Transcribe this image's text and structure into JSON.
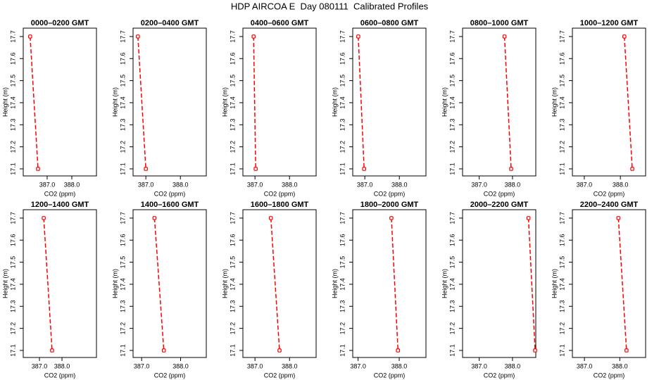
{
  "title": "HDP AIRCOA E  Day 080111  Calibrated Profiles",
  "chart_data": [
    {
      "type": "line",
      "title": "0000–0200 GMT",
      "xlabel": "CO2 (ppm)",
      "ylabel": "Height (m)",
      "x": [
        386.31,
        386.63
      ],
      "series": [
        {
          "color": "#ff0000",
          "values": [
            17.7,
            17.1
          ]
        }
      ],
      "xlim": [
        386.03,
        389.0
      ],
      "xticks": [
        {
          "value": 387,
          "label": "387.0"
        },
        {
          "value": 388,
          "label": "388.0"
        }
      ],
      "ylim": [
        17.068,
        17.738
      ],
      "yticks": [
        17.1,
        17.2,
        17.3,
        17.4,
        17.5,
        17.6,
        17.7
      ]
    },
    {
      "type": "line",
      "title": "0200–0400 GMT",
      "xlabel": "CO2 (ppm)",
      "ylabel": "Height (m)",
      "x": [
        386.77,
        387.0
      ],
      "series": [
        {
          "color": "#ff0000",
          "values": [
            17.7,
            17.1
          ]
        }
      ],
      "xlim": [
        386.63,
        388.75
      ],
      "xticks": [
        {
          "value": 387,
          "label": "387.0"
        },
        {
          "value": 388,
          "label": "388.0"
        }
      ],
      "ylim": [
        17.068,
        17.738
      ],
      "yticks": [
        17.1,
        17.2,
        17.3,
        17.4,
        17.5,
        17.6,
        17.7
      ]
    },
    {
      "type": "line",
      "title": "0400–0600 GMT",
      "xlabel": "CO2 (ppm)",
      "ylabel": "Height (m)",
      "x": [
        386.96,
        387.02
      ],
      "series": [
        {
          "color": "#ff0000",
          "values": [
            17.7,
            17.1
          ]
        }
      ],
      "xlim": [
        386.65,
        388.77
      ],
      "xticks": [
        {
          "value": 387,
          "label": "387.0"
        },
        {
          "value": 388,
          "label": "388.0"
        }
      ],
      "ylim": [
        17.068,
        17.738
      ],
      "yticks": [
        17.1,
        17.2,
        17.3,
        17.4,
        17.5,
        17.6,
        17.7
      ]
    },
    {
      "type": "line",
      "title": "0600–0800 GMT",
      "xlabel": "CO2 (ppm)",
      "ylabel": "Height (m)",
      "x": [
        386.81,
        386.98
      ],
      "series": [
        {
          "color": "#ff0000",
          "values": [
            17.7,
            17.1
          ]
        }
      ],
      "xlim": [
        386.65,
        388.77
      ],
      "xticks": [
        {
          "value": 387,
          "label": "387.0"
        },
        {
          "value": 388,
          "label": "388.0"
        }
      ],
      "ylim": [
        17.068,
        17.738
      ],
      "yticks": [
        17.1,
        17.2,
        17.3,
        17.4,
        17.5,
        17.6,
        17.7
      ]
    },
    {
      "type": "line",
      "title": "0800–1000 GMT",
      "xlabel": "CO2 (ppm)",
      "ylabel": "Height (m)",
      "x": [
        387.76,
        387.96
      ],
      "series": [
        {
          "color": "#ff0000",
          "values": [
            17.7,
            17.1
          ]
        }
      ],
      "xlim": [
        386.5,
        388.7
      ],
      "xticks": [
        {
          "value": 387,
          "label": "387.0"
        },
        {
          "value": 388,
          "label": "388.0"
        }
      ],
      "ylim": [
        17.068,
        17.738
      ],
      "yticks": [
        17.1,
        17.2,
        17.3,
        17.4,
        17.5,
        17.6,
        17.7
      ]
    },
    {
      "type": "line",
      "title": "1000–1200 GMT",
      "xlabel": "CO2 (ppm)",
      "ylabel": "Height (m)",
      "x": [
        388.11,
        388.33
      ],
      "series": [
        {
          "color": "#ff0000",
          "values": [
            17.7,
            17.1
          ]
        }
      ],
      "xlim": [
        386.67,
        388.7
      ],
      "xticks": [
        {
          "value": 387,
          "label": "387.0"
        },
        {
          "value": 388,
          "label": "388.0"
        }
      ],
      "ylim": [
        17.068,
        17.738
      ],
      "yticks": [
        17.1,
        17.2,
        17.3,
        17.4,
        17.5,
        17.6,
        17.7
      ]
    },
    {
      "type": "line",
      "title": "1200–1400 GMT",
      "xlabel": "CO2 (ppm)",
      "ylabel": "Height (m)",
      "x": [
        387.19,
        387.56
      ],
      "series": [
        {
          "color": "#ff0000",
          "values": [
            17.7,
            17.1
          ]
        }
      ],
      "xlim": [
        386.28,
        389.53
      ],
      "xticks": [
        {
          "value": 387,
          "label": "387.0"
        },
        {
          "value": 388,
          "label": "388.0"
        }
      ],
      "ylim": [
        17.068,
        17.738
      ],
      "yticks": [
        17.1,
        17.2,
        17.3,
        17.4,
        17.5,
        17.6,
        17.7
      ]
    },
    {
      "type": "line",
      "title": "1400–1600 GMT",
      "xlabel": "CO2 (ppm)",
      "ylabel": "Height (m)",
      "x": [
        387.33,
        387.57
      ],
      "series": [
        {
          "color": "#ff0000",
          "values": [
            17.7,
            17.1
          ]
        }
      ],
      "xlim": [
        386.78,
        388.66
      ],
      "xticks": [
        {
          "value": 387,
          "label": "387.0"
        },
        {
          "value": 388,
          "label": "388.0"
        }
      ],
      "ylim": [
        17.068,
        17.738
      ],
      "yticks": [
        17.1,
        17.2,
        17.3,
        17.4,
        17.5,
        17.6,
        17.7
      ]
    },
    {
      "type": "line",
      "title": "1600–1800 GMT",
      "xlabel": "CO2 (ppm)",
      "ylabel": "Height (m)",
      "x": [
        387.46,
        387.71
      ],
      "series": [
        {
          "color": "#ff0000",
          "values": [
            17.7,
            17.1
          ]
        }
      ],
      "xlim": [
        386.65,
        388.77
      ],
      "xticks": [
        {
          "value": 387,
          "label": "387.0"
        },
        {
          "value": 388,
          "label": "388.0"
        }
      ],
      "ylim": [
        17.068,
        17.738
      ],
      "yticks": [
        17.1,
        17.2,
        17.3,
        17.4,
        17.5,
        17.6,
        17.7
      ]
    },
    {
      "type": "line",
      "title": "1800–2000 GMT",
      "xlabel": "CO2 (ppm)",
      "ylabel": "Height (m)",
      "x": [
        387.81,
        387.97
      ],
      "series": [
        {
          "color": "#ff0000",
          "values": [
            17.7,
            17.1
          ]
        }
      ],
      "xlim": [
        386.87,
        388.65
      ],
      "xticks": [
        {
          "value": 387,
          "label": "387.0"
        },
        {
          "value": 388,
          "label": "388.0"
        }
      ],
      "ylim": [
        17.068,
        17.738
      ],
      "yticks": [
        17.1,
        17.2,
        17.3,
        17.4,
        17.5,
        17.6,
        17.7
      ]
    },
    {
      "type": "line",
      "title": "2000–2200 GMT",
      "xlabel": "CO2 (ppm)",
      "ylabel": "Height (m)",
      "x": [
        388.48,
        388.68
      ],
      "series": [
        {
          "color": "#ff0000",
          "values": [
            17.7,
            17.1
          ]
        }
      ],
      "xlim": [
        386.5,
        388.7
      ],
      "xticks": [
        {
          "value": 387,
          "label": "387.0"
        },
        {
          "value": 388,
          "label": "388.0"
        }
      ],
      "ylim": [
        17.068,
        17.738
      ],
      "yticks": [
        17.1,
        17.2,
        17.3,
        17.4,
        17.5,
        17.6,
        17.7
      ]
    },
    {
      "type": "line",
      "title": "2200–2400 GMT",
      "xlabel": "CO2 (ppm)",
      "ylabel": "Height (m)",
      "x": [
        387.96,
        388.19
      ],
      "series": [
        {
          "color": "#ff0000",
          "values": [
            17.7,
            17.1
          ]
        }
      ],
      "xlim": [
        386.66,
        388.73
      ],
      "xticks": [
        {
          "value": 387,
          "label": "387.0"
        },
        {
          "value": 388,
          "label": "388.0"
        }
      ],
      "ylim": [
        17.068,
        17.738
      ],
      "yticks": [
        17.1,
        17.2,
        17.3,
        17.4,
        17.5,
        17.6,
        17.7
      ]
    }
  ]
}
